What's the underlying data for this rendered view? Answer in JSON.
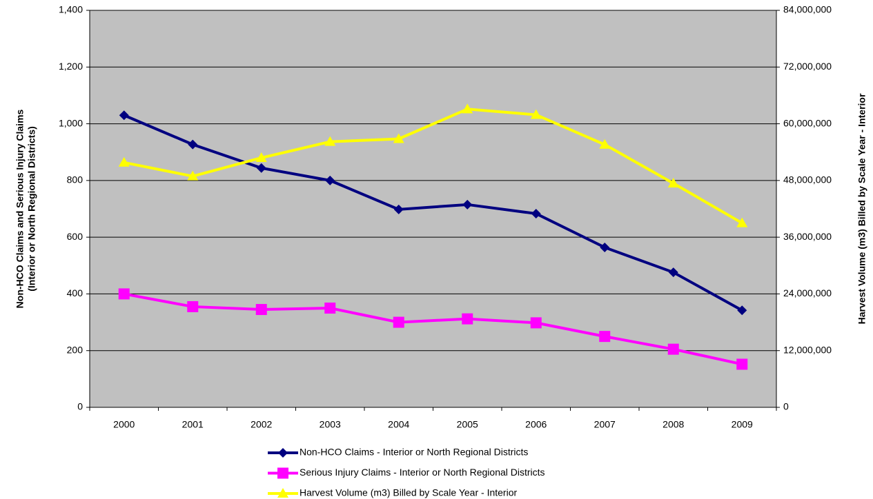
{
  "chart_data": {
    "type": "line",
    "categories": [
      "2000",
      "2001",
      "2002",
      "2003",
      "2004",
      "2005",
      "2006",
      "2007",
      "2008",
      "2009"
    ],
    "ylabel": "Non-HCO Claims and Serious Injury Claims\n(Interior or North Regional Districts)",
    "y2label": "Harvest Volume (m3) Billed by Scale Year - Interior",
    "ylim": [
      0,
      1400
    ],
    "yticks": [
      0,
      200,
      400,
      600,
      800,
      {
        "value": 1000,
        "label": "1,000"
      },
      {
        "value": 1200,
        "label": "1,200"
      },
      {
        "value": 1400,
        "label": "1,400"
      }
    ],
    "y2lim": [
      0,
      84000000
    ],
    "y2ticks": [
      0,
      {
        "value": 12000000,
        "label": "12,000,000"
      },
      {
        "value": 24000000,
        "label": "24,000,000"
      },
      {
        "value": 36000000,
        "label": "36,000,000"
      },
      {
        "value": 48000000,
        "label": "48,000,000"
      },
      {
        "value": 60000000,
        "label": "60,000,000"
      },
      {
        "value": 72000000,
        "label": "72,000,000"
      },
      {
        "value": 84000000,
        "label": "84,000,000"
      }
    ],
    "grid": true,
    "legend": "bottom",
    "series": [
      {
        "name": "Non-HCO Claims - Interior or North Regional Districts",
        "color": "#000080",
        "marker": "diamond",
        "values": [
          1030,
          927,
          844,
          800,
          698,
          715,
          683,
          564,
          476,
          342
        ]
      },
      {
        "name": "Serious Injury Claims - Interior or North Regional Districts",
        "color": "#ff00ff",
        "marker": "square",
        "values": [
          400,
          355,
          345,
          350,
          300,
          312,
          298,
          250,
          205,
          152
        ]
      },
      {
        "name": "Harvest Volume (m3) Billed by Scale Year - Interior",
        "color": "#ffff00",
        "marker": "triangle",
        "axis": "y2",
        "values": [
          51800000,
          48900000,
          52800000,
          56200000,
          56800000,
          63100000,
          61900000,
          55600000,
          47400000,
          39000000
        ]
      }
    ]
  }
}
